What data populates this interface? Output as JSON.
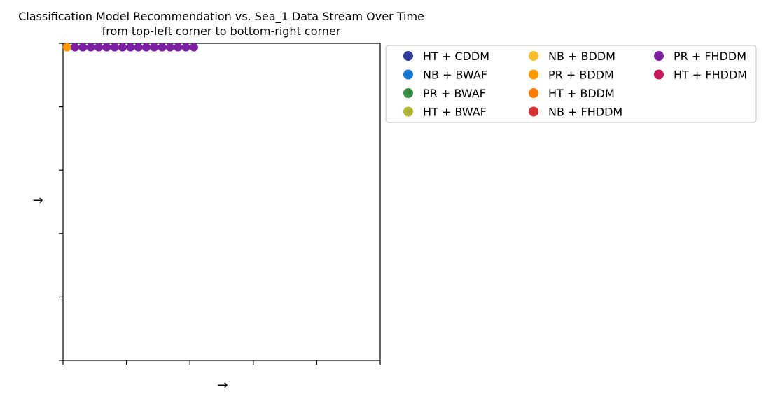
{
  "chart_data": {
    "type": "scatter",
    "title": "Classification Model Recommendation vs. Sea_1 Data Stream Over Time",
    "subtitle": "from top-left corner to bottom-right corner",
    "xlabel": "→",
    "ylabel": "→",
    "xlim": [
      0,
      40
    ],
    "ylim": [
      0,
      40
    ],
    "grid": false,
    "legend": {
      "placement": "outside-top-right",
      "columns": 3,
      "entries": [
        {
          "label": "HT + CDDM",
          "color": "#2e3a98"
        },
        {
          "label": "NB + BWAF",
          "color": "#1a76d2"
        },
        {
          "label": "PR + BWAF",
          "color": "#3a8e44"
        },
        {
          "label": "HT + BWAF",
          "color": "#adb332"
        },
        {
          "label": "NB + BDDM",
          "color": "#f7c02a"
        },
        {
          "label": "PR + BDDM",
          "color": "#ff9a00"
        },
        {
          "label": "HT + BDDM",
          "color": "#ff7a00"
        },
        {
          "label": "NB + FHDDM",
          "color": "#d43232"
        },
        {
          "label": "PR + FHDDM",
          "color": "#7c1fa3"
        },
        {
          "label": "HT + FHDDM",
          "color": "#c4185b"
        }
      ]
    },
    "series": [
      {
        "name": "PR + BDDM",
        "color": "#ff9a00",
        "points": [
          {
            "x": 0.5,
            "y": 39.5
          }
        ]
      },
      {
        "name": "PR + FHDDM",
        "color": "#7c1fa3",
        "points": [
          {
            "x": 1.5,
            "y": 39.5
          },
          {
            "x": 2.5,
            "y": 39.5
          },
          {
            "x": 3.5,
            "y": 39.5
          },
          {
            "x": 4.5,
            "y": 39.5
          },
          {
            "x": 5.5,
            "y": 39.5
          },
          {
            "x": 6.5,
            "y": 39.5
          },
          {
            "x": 7.5,
            "y": 39.5
          },
          {
            "x": 8.5,
            "y": 39.5
          },
          {
            "x": 9.5,
            "y": 39.5
          },
          {
            "x": 10.5,
            "y": 39.5
          },
          {
            "x": 11.5,
            "y": 39.5
          },
          {
            "x": 12.5,
            "y": 39.5
          },
          {
            "x": 13.5,
            "y": 39.5
          },
          {
            "x": 14.5,
            "y": 39.5
          },
          {
            "x": 15.5,
            "y": 39.5
          },
          {
            "x": 16.5,
            "y": 39.5
          }
        ]
      }
    ]
  }
}
